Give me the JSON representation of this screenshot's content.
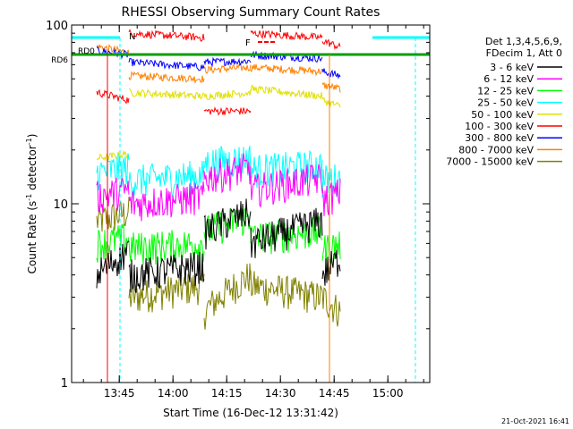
{
  "chart_data": {
    "type": "line",
    "title": "RHESSI Observing Summary Count Rates",
    "xlabel": "Start Time (16-Dec-12 13:31:42)",
    "ylabel": "Count Rate (s⁻¹ detector⁻¹)",
    "ylabel_main": "Count Rate (s",
    "ylabel_sup1": "-1",
    "ylabel_mid": " detector",
    "ylabel_sup2": "-1",
    "ylabel_end": ")",
    "yscale": "log",
    "ylim": [
      1,
      100
    ],
    "y_ticks": [
      {
        "value": 1,
        "label": "1"
      },
      {
        "value": 10,
        "label": "10"
      },
      {
        "value": 100,
        "label": "100"
      }
    ],
    "xlim_minutes": [
      0,
      100
    ],
    "x_ticks": [
      {
        "minutes": 13.3,
        "label": "13:45"
      },
      {
        "minutes": 28.3,
        "label": "14:00"
      },
      {
        "minutes": 43.3,
        "label": "14:15"
      },
      {
        "minutes": 58.3,
        "label": "14:30"
      },
      {
        "minutes": 73.3,
        "label": "14:45"
      },
      {
        "minutes": 88.3,
        "label": "15:00"
      }
    ],
    "legend_header": [
      "Det 1,3,4,5,6,9,",
      "FDecim 1, Att 0"
    ],
    "legend_placement": "right",
    "series": [
      {
        "name": "3 - 6 keV",
        "color": "#000000",
        "before": [
          4,
          5.5
        ],
        "night": [
          4,
          4.5
        ],
        "day1": [
          7,
          9
        ],
        "day2": [
          6,
          8
        ],
        "after": [
          4,
          5
        ]
      },
      {
        "name": "6 - 12 keV",
        "color": "#ff00ff",
        "before": [
          11,
          12
        ],
        "night": [
          10,
          11
        ],
        "day1": [
          14,
          16
        ],
        "day2": [
          12,
          14
        ],
        "after": [
          10.5,
          11.5
        ]
      },
      {
        "name": "12 - 25 keV",
        "color": "#00ff00",
        "before": [
          6,
          6.5
        ],
        "night": [
          5.7,
          6
        ],
        "day1": [
          7,
          8.5
        ],
        "day2": [
          6.5,
          7
        ],
        "after": [
          5.5,
          6
        ]
      },
      {
        "name": "25 - 50 keV",
        "color": "#00ffff",
        "before": [
          15,
          16
        ],
        "night": [
          13.5,
          14.5
        ],
        "day1": [
          17,
          18
        ],
        "day2": [
          15.5,
          16.5
        ],
        "after": [
          13.5,
          14
        ]
      },
      {
        "name": "50 - 100 keV",
        "color": "#e0e000",
        "before": [
          18,
          19
        ],
        "night": [
          42,
          40
        ],
        "day1": [
          40,
          42
        ],
        "day2": [
          44,
          40
        ],
        "after": [
          38,
          35
        ]
      },
      {
        "name": "100 - 300 keV",
        "color": "#ff0000",
        "before": [
          42,
          38
        ],
        "night": [
          90,
          85
        ],
        "day1": [
          33,
          33
        ],
        "day2": [
          90,
          85
        ],
        "after": [
          82,
          75
        ]
      },
      {
        "name": "300 - 800 keV",
        "color": "#0000ff",
        "before": [
          72,
          68
        ],
        "night": [
          62,
          58
        ],
        "day1": [
          62,
          63
        ],
        "day2": [
          68,
          65
        ],
        "after": [
          55,
          52
        ]
      },
      {
        "name": "800 - 7000 keV",
        "color": "#ff8000",
        "before": [
          76,
          70
        ],
        "night": [
          52,
          50
        ],
        "day1": [
          56,
          58
        ],
        "day2": [
          58,
          55
        ],
        "after": [
          46,
          44
        ]
      },
      {
        "name": "7000 - 15000 keV",
        "color": "#808000",
        "before": [
          8,
          9
        ],
        "night": [
          3,
          3.5
        ],
        "day1": [
          2.5,
          4
        ],
        "day2": [
          3.5,
          3
        ],
        "after": [
          3,
          2.5
        ]
      }
    ],
    "annotations": {
      "night_label": "N",
      "flare_label": "F",
      "rd0_label": "RD0",
      "rd6_label": "RD6"
    },
    "footer_date": "21-Oct-2021 16:41"
  }
}
